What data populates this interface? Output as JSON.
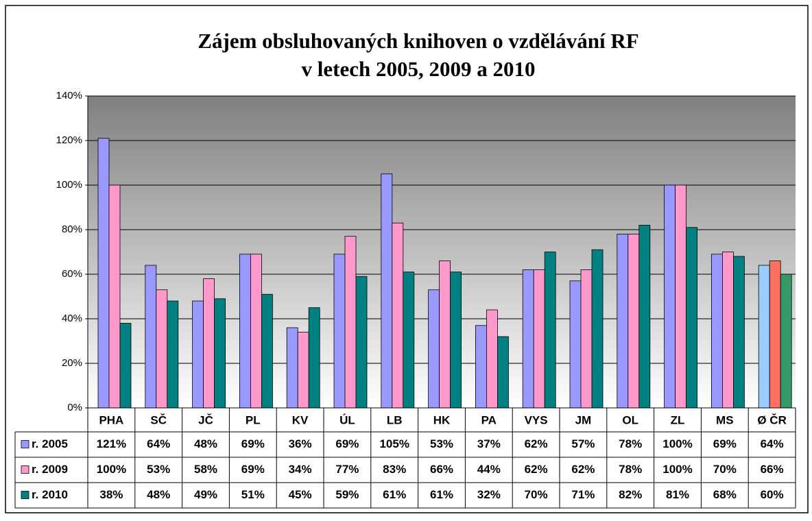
{
  "chart_data": {
    "type": "bar",
    "title": [
      "Zájem obsluhovaných knihoven o vzdělávání RF",
      "v letech 2005, 2009 a 2010"
    ],
    "categories": [
      "PHA",
      "SČ",
      "JČ",
      "PL",
      "KV",
      "ÚL",
      "LB",
      "HK",
      "PA",
      "VYS",
      "JM",
      "OL",
      "ZL",
      "MS",
      "Ø ČR"
    ],
    "series": [
      {
        "name": "r. 2005",
        "color": "#9999ff",
        "last_color": "#99ccff",
        "values": [
          121,
          64,
          48,
          69,
          36,
          69,
          105,
          53,
          37,
          62,
          57,
          78,
          100,
          69,
          64
        ],
        "value_labels": [
          "121%",
          "64%",
          "48%",
          "69%",
          "36%",
          "69%",
          "105%",
          "53%",
          "37%",
          "62%",
          "57%",
          "78%",
          "100%",
          "69%",
          "64%"
        ]
      },
      {
        "name": "r. 2009",
        "color": "#ff99cc",
        "last_color": "#ff7060",
        "values": [
          100,
          53,
          58,
          69,
          34,
          77,
          83,
          66,
          44,
          62,
          62,
          78,
          100,
          70,
          66
        ],
        "value_labels": [
          "100%",
          "53%",
          "58%",
          "69%",
          "34%",
          "77%",
          "83%",
          "66%",
          "44%",
          "62%",
          "62%",
          "78%",
          "100%",
          "70%",
          "66%"
        ]
      },
      {
        "name": "r. 2010",
        "color": "#008080",
        "last_color": "#339966",
        "values": [
          38,
          48,
          49,
          51,
          45,
          59,
          61,
          61,
          32,
          70,
          71,
          82,
          81,
          68,
          60
        ],
        "value_labels": [
          "38%",
          "48%",
          "49%",
          "51%",
          "45%",
          "59%",
          "61%",
          "61%",
          "32%",
          "70%",
          "71%",
          "82%",
          "81%",
          "68%",
          "60%"
        ]
      }
    ],
    "ylim": [
      0,
      140
    ],
    "yticks": [
      {
        "value": 0,
        "label": "0%"
      },
      {
        "value": 20,
        "label": "20%"
      },
      {
        "value": 40,
        "label": "40%"
      },
      {
        "value": 60,
        "label": "60%"
      },
      {
        "value": 80,
        "label": "80%"
      },
      {
        "value": 100,
        "label": "100%"
      },
      {
        "value": 120,
        "label": "120%"
      },
      {
        "value": 140,
        "label": "140%"
      }
    ],
    "grid": true
  }
}
